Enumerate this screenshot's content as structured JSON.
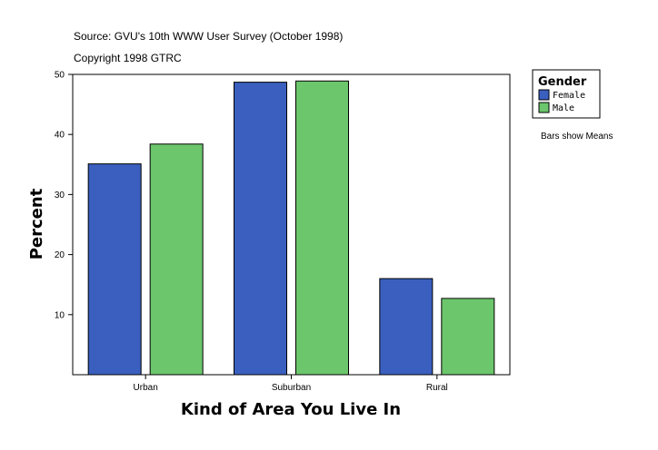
{
  "header": {
    "source": "Source: GVU's 10th WWW User Survey (October 1998)",
    "copyright": "Copyright 1998 GTRC"
  },
  "legend": {
    "title": "Gender",
    "note": "Bars show Means"
  },
  "chart_data": {
    "type": "bar",
    "categories": [
      "Urban",
      "Suburban",
      "Rural"
    ],
    "series": [
      {
        "name": "Female",
        "color": "#3a5fbf",
        "values": [
          35.1,
          48.7,
          16.0
        ]
      },
      {
        "name": "Male",
        "color": "#6cc66c",
        "values": [
          38.4,
          48.9,
          12.7
        ]
      }
    ],
    "xlabel": "Kind of Area You Live In",
    "ylabel": "Percent",
    "ylim": [
      0,
      50
    ],
    "yticks": [
      10,
      20,
      30,
      40,
      50
    ],
    "grid": false,
    "legend_position": "top-right"
  }
}
